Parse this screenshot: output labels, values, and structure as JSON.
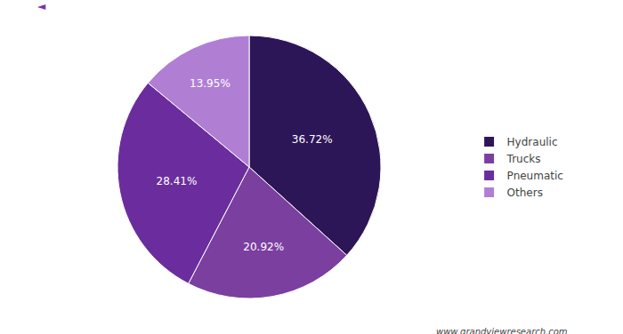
{
  "chart_data": {
    "type": "pie",
    "categories": [
      "Hydraulic",
      "Trucks",
      "Pneumatic",
      "Others"
    ],
    "values": [
      36.72,
      20.92,
      28.41,
      13.95
    ],
    "value_labels": [
      "36.72%",
      "20.92%",
      "28.41%",
      "13.95%"
    ],
    "colors": [
      "#2d1657",
      "#7b3fa0",
      "#6b2d9e",
      "#b07fd4"
    ],
    "data_labels": true,
    "legend": "right",
    "annotations": [
      "◄",
      "www.grandviewresearch.com"
    ]
  }
}
